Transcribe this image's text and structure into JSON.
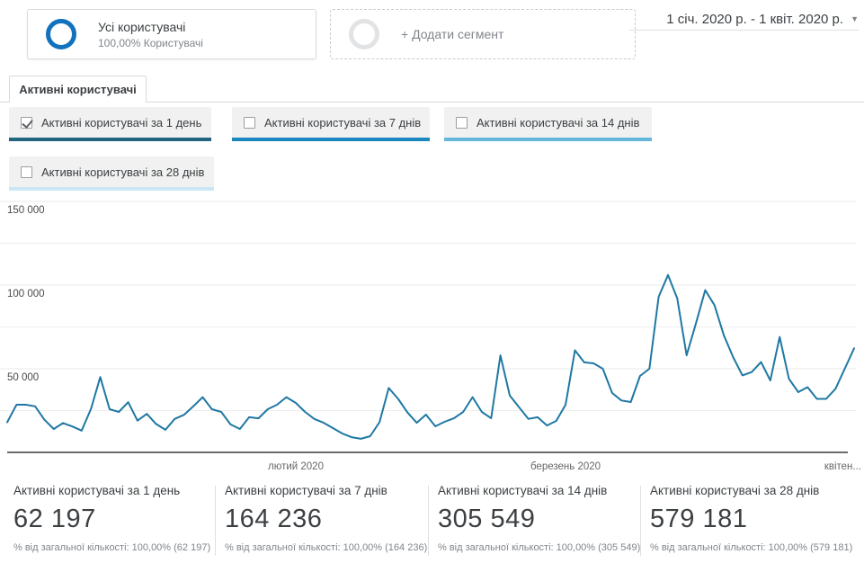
{
  "segments": {
    "all_users": {
      "title": "Усі користувачі",
      "subtitle": "100,00% Користувачі"
    },
    "add_segment_label": "+ Додати сегмент"
  },
  "date_range": "1 січ. 2020 р. - 1 квіт. 2020 р.",
  "caret": "▼",
  "tab_label": "Активні користувачі",
  "toggles": [
    {
      "label": "Активні користувачі за 1 день",
      "checked": true,
      "color": "#23657f"
    },
    {
      "label": "Активні користувачі за 7 днів",
      "checked": false,
      "color": "#1b87c0"
    },
    {
      "label": "Активні користувачі за 14 днів",
      "checked": false,
      "color": "#66b7dc"
    },
    {
      "label": "Активні користувачі за 28 днів",
      "checked": false,
      "color": "#cbe7f4"
    }
  ],
  "chart_data": {
    "type": "line",
    "title": "Активні користувачі",
    "x_start": "2020-01-01",
    "x_end": "2020-04-01",
    "x_unit": "day",
    "ylim": [
      0,
      150000
    ],
    "grid_step": 25000,
    "yticks": {
      "y150": "150 000",
      "y100": "100 000",
      "y50": "50 000"
    },
    "xticks": {
      "feb": "лютий 2020",
      "mar": "березень 2020",
      "apr": "квітен..."
    },
    "series": [
      {
        "name": "Активні користувачі за 1 день",
        "color": "#1f78a3",
        "values": [
          18000,
          28500,
          28500,
          27500,
          19500,
          14000,
          17500,
          15500,
          13000,
          26000,
          45000,
          25800,
          24200,
          30000,
          19000,
          23000,
          17000,
          13500,
          20000,
          22500,
          27500,
          33000,
          25800,
          24200,
          16700,
          14000,
          21000,
          20400,
          25800,
          28500,
          33000,
          29600,
          24200,
          20000,
          17700,
          14500,
          11300,
          9100,
          8100,
          9700,
          18000,
          38500,
          32000,
          24000,
          17700,
          22600,
          15600,
          18300,
          20400,
          24200,
          33000,
          24200,
          20400,
          58000,
          34000,
          27000,
          20000,
          21000,
          16100,
          18800,
          28500,
          61000,
          53800,
          53200,
          50000,
          35500,
          31000,
          30100,
          45700,
          50000,
          93000,
          106000,
          92000,
          58000,
          77000,
          97000,
          88000,
          70000,
          57000,
          46000,
          48000,
          54000,
          43000,
          69000,
          44000,
          36000,
          39000,
          32000,
          32000,
          38000,
          50000,
          62197
        ]
      }
    ]
  },
  "summary_cards": [
    {
      "title": "Активні користувачі за 1 день",
      "value": "62 197",
      "subtitle": "% від загальної кількості: 100,00% (62 197)"
    },
    {
      "title": "Активні користувачі за 7 днів",
      "value": "164 236",
      "subtitle": "% від загальної кількості: 100,00% (164 236)"
    },
    {
      "title": "Активні користувачі за 14 днів",
      "value": "305 549",
      "subtitle": "% від загальної кількості: 100,00% (305 549)"
    },
    {
      "title": "Активні користувачі за 28 днів",
      "value": "579 181",
      "subtitle": "% від загальної кількості: 100,00% (579 181)"
    }
  ]
}
